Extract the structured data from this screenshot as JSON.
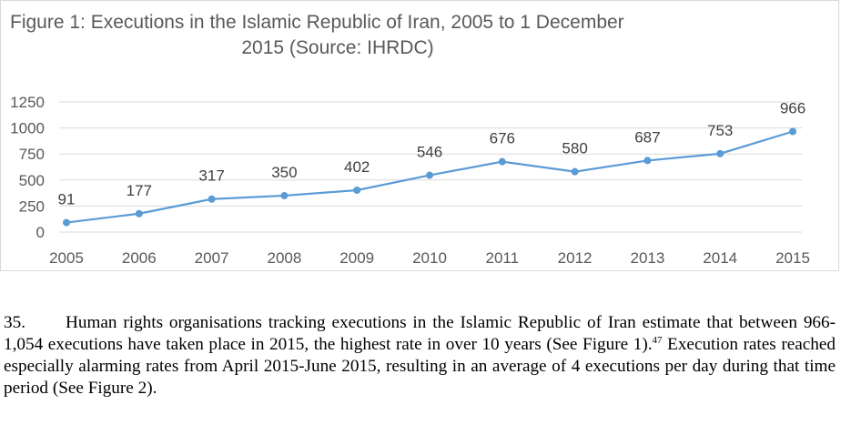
{
  "chart_data": {
    "type": "line",
    "title_line1": "Figure 1: Executions in the Islamic Republic of Iran, 2005 to 1 December",
    "title_line2": "2015 (Source: IHRDC)",
    "categories": [
      "2005",
      "2006",
      "2007",
      "2008",
      "2009",
      "2010",
      "2011",
      "2012",
      "2013",
      "2014",
      "2015"
    ],
    "values": [
      91,
      177,
      317,
      350,
      402,
      546,
      676,
      580,
      687,
      753,
      966
    ],
    "yticks": [
      "0",
      "250",
      "500",
      "750",
      "1000",
      "1250"
    ],
    "ylim": [
      0,
      1250
    ],
    "grid": "horizontal",
    "legend": "none",
    "colors": {
      "line": "#5b9bd5",
      "grid": "#d9d9d9",
      "text": "#595959"
    }
  },
  "paragraph": {
    "number": "35.",
    "text_part1": "Human rights organisations tracking executions in the Islamic Republic of Iran estimate that between 966-1,054 executions have taken place in 2015, the highest rate in over 10 years (See Figure 1).",
    "footnote": "47",
    "text_part2": " Execution rates reached especially alarming rates from April 2015-June 2015, resulting in an average of 4 executions per day during that time period (See Figure 2)."
  }
}
